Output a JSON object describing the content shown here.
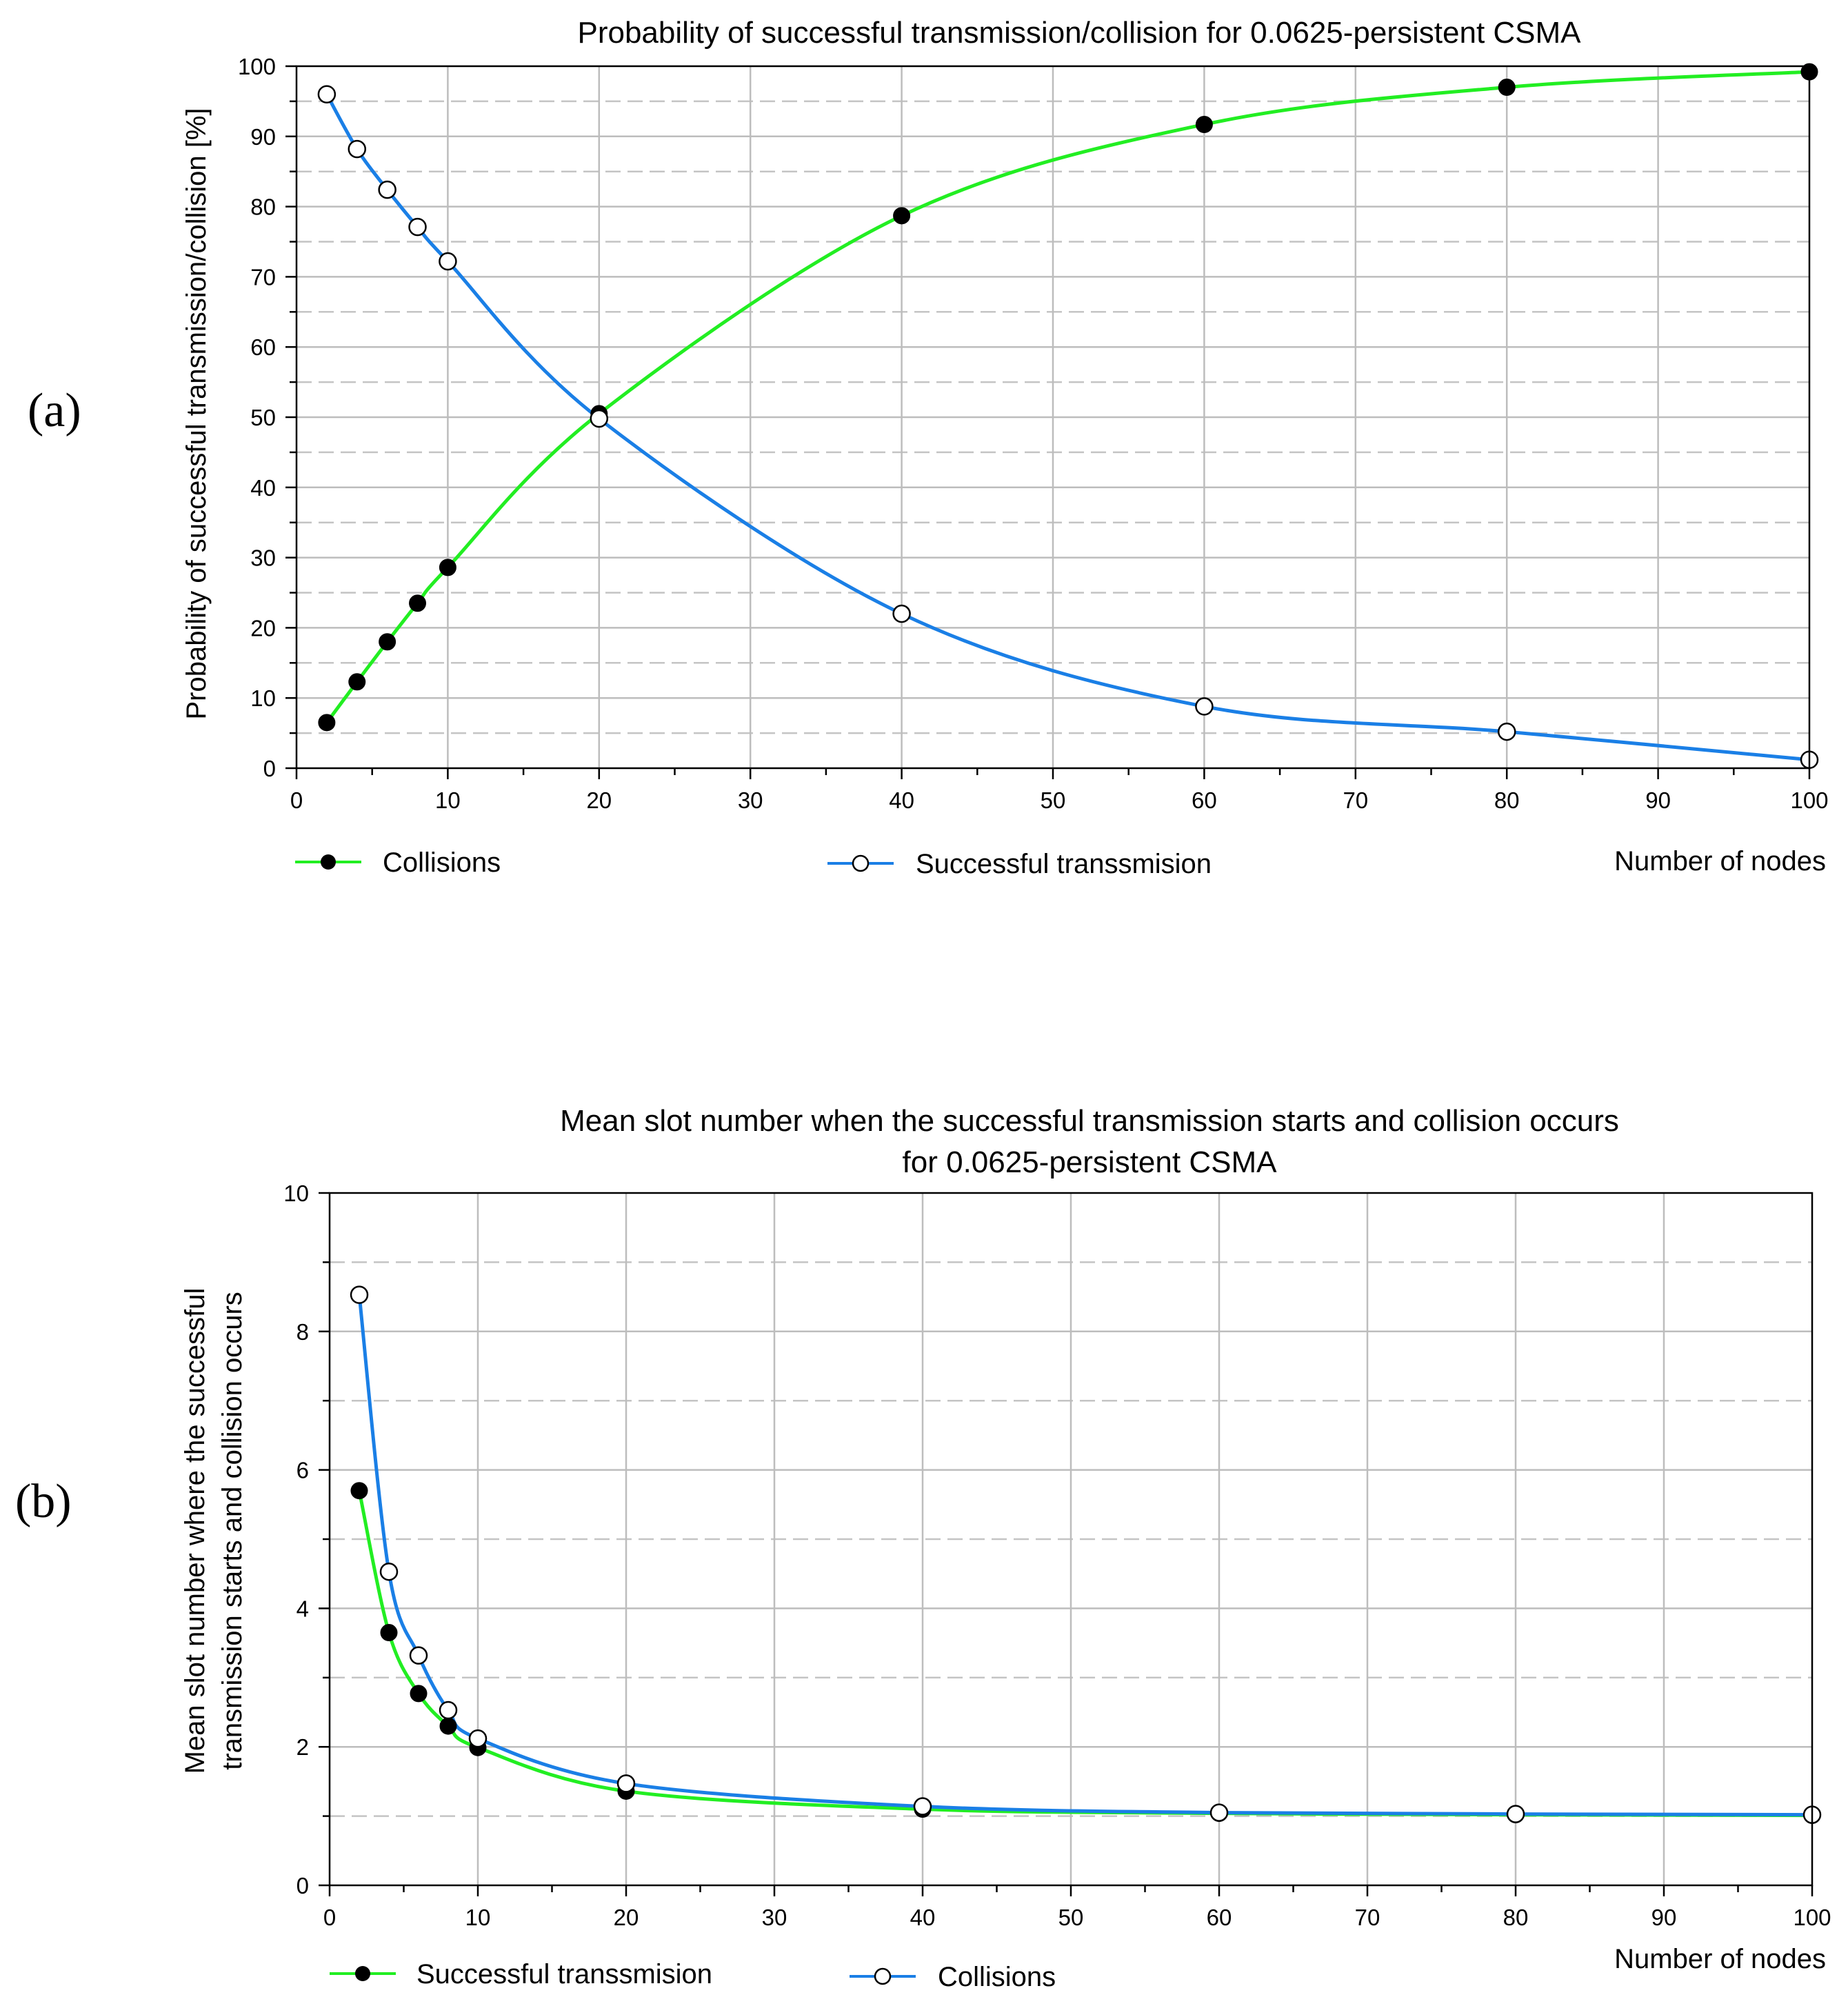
{
  "chart_data": [
    {
      "panel_label": "(a)",
      "type": "line",
      "title": "Probability of successful transmission/collision for 0.0625-persistent CSMA",
      "xlabel": "Number of nodes",
      "ylabel": "Probability of successful transmission/collision [%]",
      "xlim": [
        0,
        100
      ],
      "ylim": [
        0,
        100
      ],
      "xticks": [
        0,
        10,
        20,
        30,
        40,
        50,
        60,
        70,
        80,
        90,
        100
      ],
      "yticks": [
        0,
        10,
        20,
        30,
        40,
        50,
        60,
        70,
        80,
        90,
        100
      ],
      "grid": true,
      "legend_position": "bottom",
      "series": [
        {
          "name": "Collisions",
          "color": "#22ee22",
          "marker": "filled-circle",
          "x": [
            2,
            4,
            6,
            8,
            10,
            20,
            40,
            60,
            80,
            100
          ],
          "y": [
            6.5,
            12.3,
            18.0,
            23.5,
            28.6,
            50.5,
            78.7,
            91.7,
            97.0,
            99.2
          ]
        },
        {
          "name": "Successful transsmision",
          "color": "#1a7fe6",
          "marker": "open-circle",
          "x": [
            2,
            4,
            6,
            8,
            10,
            20,
            40,
            60,
            80,
            100
          ],
          "y": [
            96.0,
            88.2,
            82.4,
            77.1,
            72.2,
            49.8,
            22.0,
            8.8,
            5.2,
            1.2
          ]
        }
      ]
    },
    {
      "panel_label": "(b)",
      "type": "line",
      "title": "Mean slot number when the successful transmission starts and collision occurs",
      "title_line2": "for 0.0625-persistent CSMA",
      "xlabel": "Number of nodes",
      "ylabel": "Mean slot number where the successful",
      "ylabel_line2": "transmission starts and collision occurs",
      "xlim": [
        0,
        100
      ],
      "ylim": [
        0,
        10
      ],
      "xticks": [
        0,
        10,
        20,
        30,
        40,
        50,
        60,
        70,
        80,
        90,
        100
      ],
      "yticks": [
        0,
        2,
        4,
        6,
        8,
        10
      ],
      "grid": true,
      "legend_position": "bottom",
      "series": [
        {
          "name": "Successful transsmision",
          "color": "#22ee22",
          "marker": "filled-circle",
          "x": [
            2,
            4,
            6,
            8,
            10,
            20,
            40,
            60,
            80,
            100
          ],
          "y": [
            5.7,
            3.65,
            2.77,
            2.3,
            1.99,
            1.36,
            1.1,
            1.04,
            1.02,
            1.01
          ]
        },
        {
          "name": "Collisions",
          "color": "#1a7fe6",
          "marker": "open-circle",
          "x": [
            2,
            4,
            6,
            8,
            10,
            20,
            40,
            60,
            80,
            100
          ],
          "y": [
            8.53,
            4.53,
            3.32,
            2.53,
            2.12,
            1.47,
            1.14,
            1.05,
            1.03,
            1.02
          ]
        }
      ]
    }
  ]
}
